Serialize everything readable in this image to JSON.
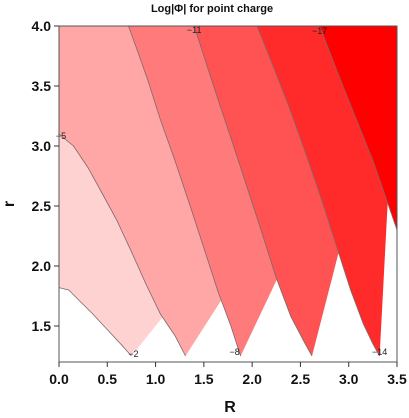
{
  "chart_data": {
    "type": "contour",
    "title": "Log|Φ| for point charge",
    "xlabel": "R",
    "ylabel": "r",
    "xlim": [
      0.0,
      3.5
    ],
    "ylim": [
      1.2,
      4.0
    ],
    "x_ticks": [
      "0.0",
      "0.5",
      "1.0",
      "1.5",
      "2.0",
      "2.5",
      "3.0",
      "3.5"
    ],
    "y_ticks": [
      "1.5",
      "2.0",
      "2.5",
      "3.0",
      "3.5",
      "4.0"
    ],
    "band_colors": [
      "#ffffff",
      "#ffd2d2",
      "#ffa6a6",
      "#ff7b7b",
      "#ff5252",
      "#ff2a2a",
      "#ff0000"
    ],
    "contour_labels": [
      "−2",
      "−5",
      "−8",
      "−11",
      "−14",
      "−17"
    ],
    "contours": [
      {
        "level": -2,
        "label_index": 0,
        "points": [
          [
            0.0,
            1.82
          ],
          [
            0.1,
            1.8
          ],
          [
            0.2,
            1.72
          ],
          [
            0.35,
            1.6
          ],
          [
            0.5,
            1.47
          ],
          [
            0.65,
            1.34
          ],
          [
            0.75,
            1.25
          ]
        ]
      },
      {
        "level": -5,
        "label_index": 1,
        "points": [
          [
            0.0,
            3.1
          ],
          [
            0.15,
            3.0
          ],
          [
            0.3,
            2.82
          ],
          [
            0.45,
            2.6
          ],
          [
            0.6,
            2.38
          ],
          [
            0.75,
            2.12
          ],
          [
            0.9,
            1.85
          ],
          [
            1.05,
            1.6
          ],
          [
            1.2,
            1.42
          ],
          [
            1.31,
            1.25
          ]
        ]
      },
      {
        "level": -8,
        "label_index": 2,
        "points": [
          [
            0.72,
            4.0
          ],
          [
            0.8,
            3.82
          ],
          [
            0.92,
            3.55
          ],
          [
            1.05,
            3.22
          ],
          [
            1.2,
            2.88
          ],
          [
            1.35,
            2.52
          ],
          [
            1.5,
            2.15
          ],
          [
            1.65,
            1.78
          ],
          [
            1.78,
            1.5
          ],
          [
            1.88,
            1.25
          ]
        ]
      },
      {
        "level": -11,
        "label_index": 3,
        "points": [
          [
            1.4,
            4.0
          ],
          [
            1.52,
            3.7
          ],
          [
            1.65,
            3.38
          ],
          [
            1.8,
            3.02
          ],
          [
            1.95,
            2.65
          ],
          [
            2.1,
            2.28
          ],
          [
            2.25,
            1.9
          ],
          [
            2.4,
            1.58
          ],
          [
            2.55,
            1.35
          ],
          [
            2.62,
            1.25
          ]
        ]
      },
      {
        "level": -14,
        "label_index": 4,
        "points": [
          [
            2.05,
            4.0
          ],
          [
            2.2,
            3.7
          ],
          [
            2.38,
            3.33
          ],
          [
            2.55,
            2.95
          ],
          [
            2.72,
            2.55
          ],
          [
            2.88,
            2.15
          ],
          [
            3.02,
            1.8
          ],
          [
            3.15,
            1.52
          ],
          [
            3.25,
            1.35
          ],
          [
            3.32,
            1.25
          ]
        ]
      },
      {
        "level": -17,
        "label_index": 5,
        "points": [
          [
            2.7,
            4.0
          ],
          [
            2.82,
            3.75
          ],
          [
            2.95,
            3.48
          ],
          [
            3.1,
            3.18
          ],
          [
            3.25,
            2.88
          ],
          [
            3.38,
            2.58
          ],
          [
            3.5,
            2.3
          ]
        ]
      }
    ]
  }
}
